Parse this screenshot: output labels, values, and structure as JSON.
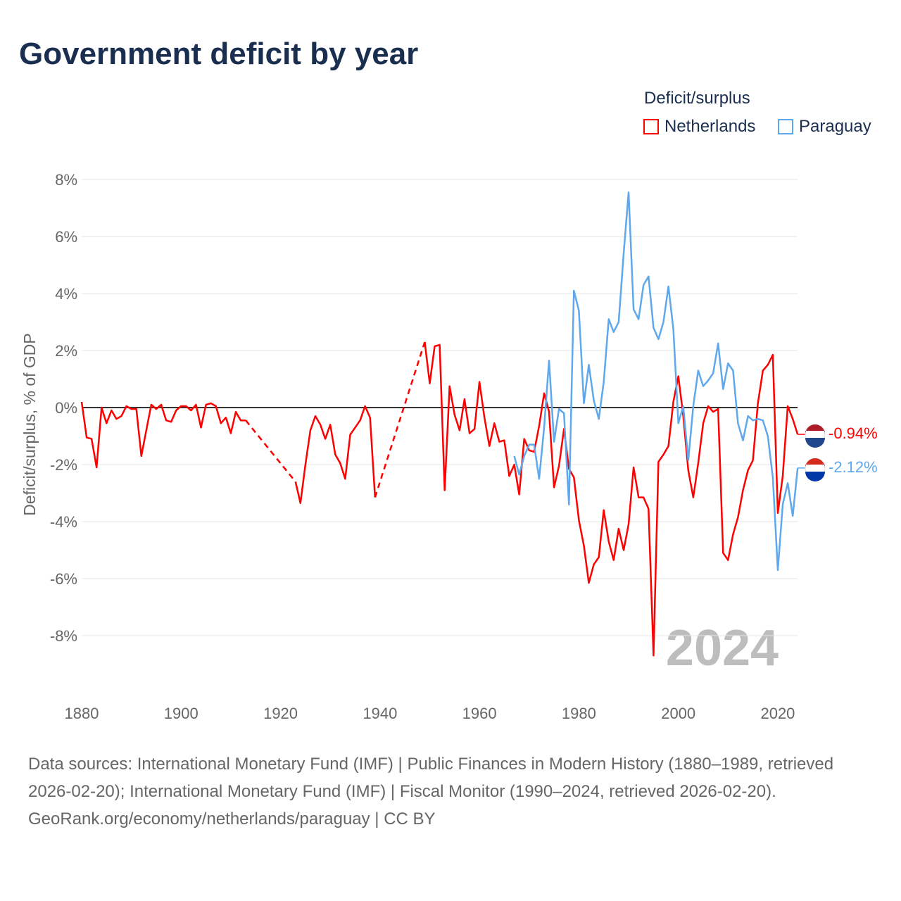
{
  "title": "Government deficit by year",
  "legend": {
    "title": "Deficit/surplus",
    "items": [
      "Netherlands",
      "Paraguay"
    ]
  },
  "year_label": "2024",
  "end_labels": {
    "netherlands": "-0.94%",
    "paraguay": "-2.12%"
  },
  "footer": {
    "sources": "Data sources: International Monetary Fund (IMF) | Public Finances in Modern History (1880–1989, retrieved 2026-02-20); International Monetary Fund (IMF) | Fiscal Monitor (1990–2024, retrieved 2026-02-20).",
    "link": "GeoRank.org/economy/netherlands/paraguay | CC BY"
  },
  "chart_data": {
    "type": "line",
    "title": "Government deficit by year",
    "xlabel": "",
    "ylabel": "Deficit/surplus, % of GDP",
    "xlim": [
      1880,
      2024
    ],
    "ylim": [
      -9.5,
      8
    ],
    "x_ticks": [
      "1880",
      "1900",
      "1920",
      "1940",
      "1960",
      "1980",
      "2000",
      "2020"
    ],
    "y_ticks": [
      "8%",
      "6%",
      "4%",
      "2%",
      "0%",
      "-2%",
      "-4%",
      "-6%",
      "-8%"
    ],
    "colors": {
      "Netherlands": "#ff0000",
      "Paraguay": "#5fa8ec"
    },
    "series": [
      {
        "name": "Netherlands",
        "start": 1880,
        "values": [
          0.2,
          -1.05,
          -1.1,
          -2.1,
          0,
          -0.55,
          -0.1,
          -0.4,
          -0.3,
          0.05,
          -0.05,
          -0.05,
          -1.7,
          -0.8,
          0.1,
          -0.05,
          0.1,
          -0.45,
          -0.5,
          -0.1,
          0.05,
          0.05,
          -0.1,
          0.1,
          -0.7,
          0.1,
          0.15,
          0.05,
          -0.55,
          -0.35,
          -0.9,
          -0.15,
          -0.45,
          -0.45,
          null,
          null,
          null,
          null,
          null,
          null,
          null,
          null,
          null,
          -2.6,
          -3.35,
          -2.0,
          -0.8,
          -0.3,
          -0.6,
          -1.1,
          -0.6,
          -1.65,
          -1.95,
          -2.5,
          -0.95,
          -0.7,
          -0.45,
          0.05,
          -0.35,
          -3.15,
          null,
          null,
          null,
          null,
          null,
          null,
          null,
          null,
          null,
          2.3,
          0.85,
          2.15,
          2.2,
          -2.9,
          0.75,
          -0.25,
          -0.8,
          0.3,
          -0.9,
          -0.75,
          0.9,
          -0.35,
          -1.35,
          -0.55,
          -1.2,
          -1.15,
          -2.4,
          -2.0,
          -3.05,
          -1.1,
          -1.5,
          -1.55,
          -0.65,
          0.5,
          -0.15,
          -2.8,
          -2.05,
          -0.75,
          -2.15,
          -2.45,
          -3.95,
          -4.85,
          -6.15,
          -5.5,
          -5.25,
          -3.6,
          -4.7,
          -5.35,
          -4.25,
          -5.0,
          -4.1,
          -2.1,
          -3.15,
          -3.15,
          -3.55,
          -8.7,
          -1.9,
          -1.65,
          -1.35,
          0.2,
          1.1,
          -0.3,
          -2.2,
          -3.15,
          -1.95,
          -0.55,
          0.05,
          -0.15,
          -0.05,
          -5.1,
          -5.35,
          -4.45,
          -3.85,
          -2.9,
          -2.2,
          -1.85,
          0.15,
          1.3,
          1.5,
          1.85,
          -3.7,
          -2.4,
          0.05,
          -0.4,
          -0.94
        ]
      },
      {
        "name": "Paraguay",
        "start": 1967,
        "values": [
          -1.7,
          -2.35,
          -1.7,
          -1.3,
          -1.3,
          -2.5,
          -0.7,
          1.65,
          -1.2,
          -0.05,
          -0.2,
          -3.4,
          4.1,
          3.4,
          0.15,
          1.5,
          0.25,
          -0.4,
          0.9,
          3.1,
          2.65,
          3.0,
          5.4,
          7.55,
          3.45,
          3.1,
          4.3,
          4.6,
          2.8,
          2.4,
          3.0,
          4.25,
          2.75,
          -0.55,
          0.05,
          -1.85,
          0.05,
          1.3,
          0.75,
          0.95,
          1.2,
          2.25,
          0.65,
          1.55,
          1.3,
          -0.55,
          -1.15,
          -0.3,
          -0.45,
          -0.4,
          -0.45,
          -1.0,
          -2.45,
          -5.7,
          -3.4,
          -2.65,
          -3.8,
          -2.12
        ]
      }
    ]
  }
}
